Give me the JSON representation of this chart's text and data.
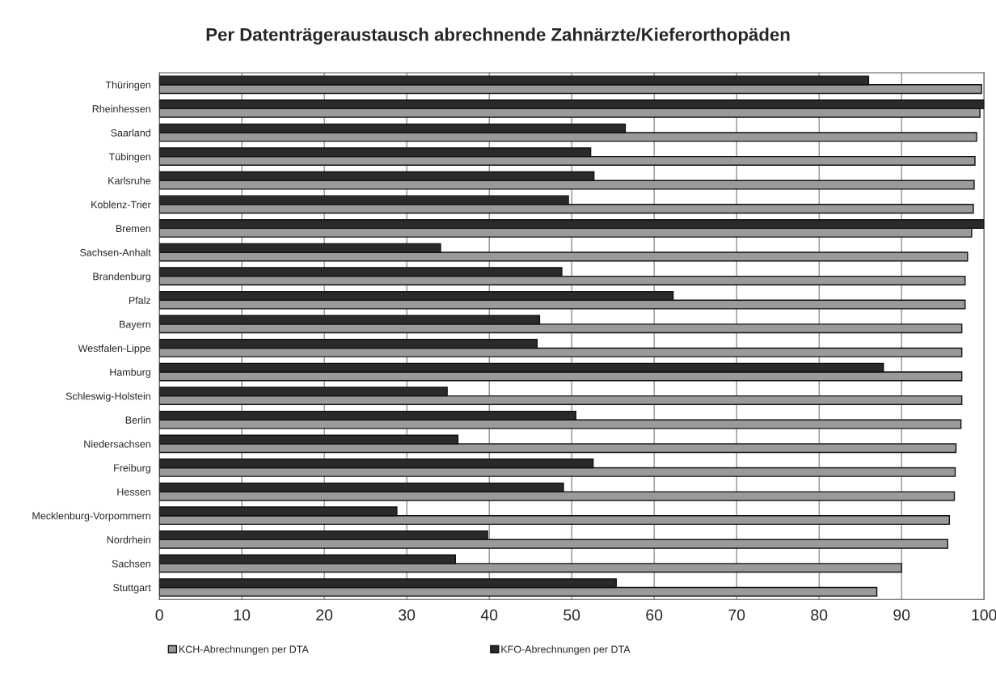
{
  "chart_data": {
    "type": "bar",
    "orientation": "horizontal",
    "title": "Per Datenträgeraustausch abrechnende Zahnärzte/Kieferorthopäden",
    "categories": [
      "Thüringen",
      "Rheinhessen",
      "Saarland",
      "Tübingen",
      "Karlsruhe",
      "Koblenz-Trier",
      "Bremen",
      "Sachsen-Anhalt",
      "Brandenburg",
      "Pfalz",
      "Bayern",
      "Westfalen-Lippe",
      "Hamburg",
      "Schleswig-Holstein",
      "Berlin",
      "Niedersachsen",
      "Freiburg",
      "Hessen",
      "Mecklenburg-Vorpommern",
      "Nordrhein",
      "Sachsen",
      "Stuttgart"
    ],
    "series": [
      {
        "name": "KCH-Abrechnungen per DTA",
        "color": "#9a9a9a",
        "values": [
          99.7,
          99.5,
          99.1,
          98.9,
          98.8,
          98.7,
          98.5,
          98.0,
          97.7,
          97.7,
          97.3,
          97.3,
          97.3,
          97.3,
          97.2,
          96.6,
          96.5,
          96.4,
          95.8,
          95.6,
          90.0,
          87.0
        ]
      },
      {
        "name": "KFO-Abrechnungen per DTA",
        "color": "#2a2a2a",
        "values": [
          86.0,
          100,
          56.5,
          52.3,
          52.7,
          49.6,
          100,
          34.1,
          48.8,
          62.3,
          46.1,
          45.8,
          87.8,
          34.9,
          50.5,
          36.2,
          52.6,
          49.0,
          28.8,
          39.8,
          35.9,
          55.4
        ]
      }
    ],
    "xlim": [
      0,
      100
    ],
    "xticks": [
      0,
      10,
      20,
      30,
      40,
      50,
      60,
      70,
      80,
      90,
      100
    ],
    "grid": "x",
    "legend": "bottom"
  }
}
